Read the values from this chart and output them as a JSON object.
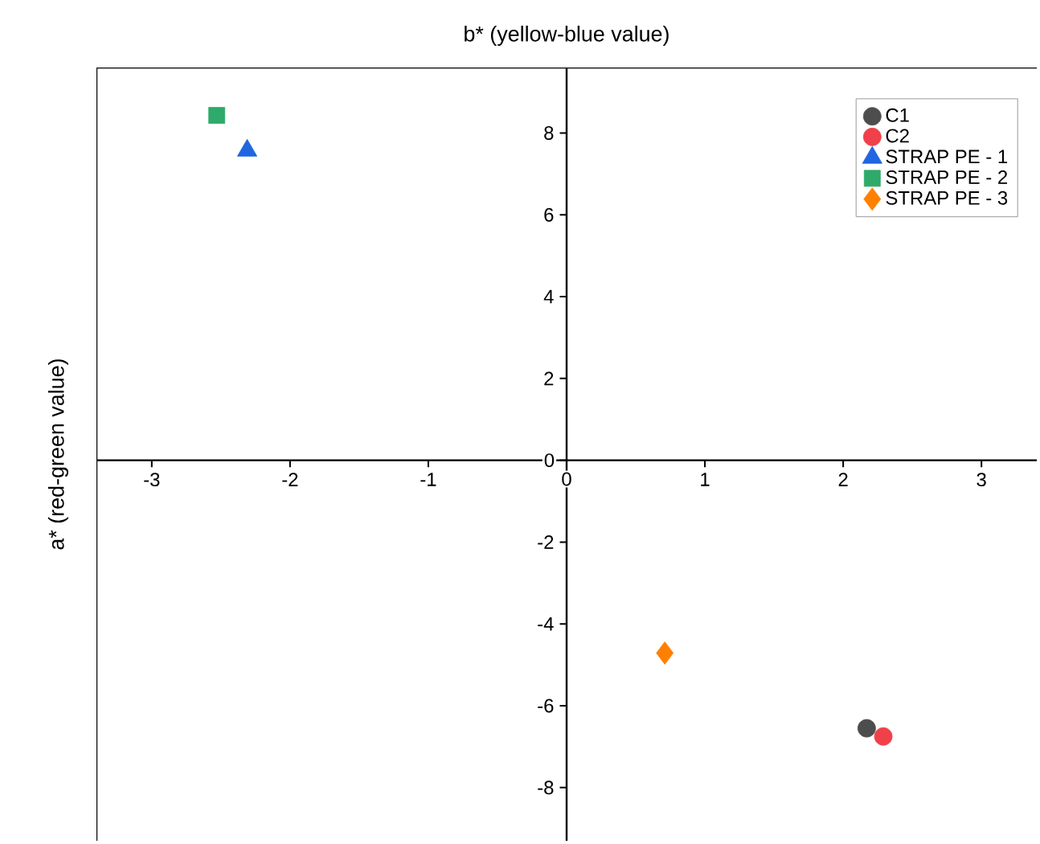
{
  "chart_data": {
    "type": "scatter",
    "title": "b* (yellow-blue value)",
    "ylabel": "a* (red-green value)",
    "xlim": [
      -3.4,
      3.4
    ],
    "ylim": [
      -9.3,
      9.6
    ],
    "xticks": [
      -3,
      -2,
      -1,
      0,
      1,
      2,
      3
    ],
    "yticks": [
      -8,
      -6,
      -4,
      -2,
      0,
      2,
      4,
      6,
      8
    ],
    "legend": "top right",
    "grid": false,
    "series": [
      {
        "name": "C1",
        "color": "#4d4d4d",
        "marker": "circle",
        "x": [
          2.17
        ],
        "values": [
          -6.55
        ]
      },
      {
        "name": "C2",
        "color": "#f0404a",
        "marker": "circle",
        "x": [
          2.29
        ],
        "values": [
          -6.75
        ]
      },
      {
        "name": "STRAP PE - 1",
        "color": "#1f66e0",
        "marker": "triangle",
        "x": [
          -2.31
        ],
        "values": [
          7.57
        ]
      },
      {
        "name": "STRAP PE - 2",
        "color": "#2eaa6a",
        "marker": "square",
        "x": [
          -2.53
        ],
        "values": [
          8.43
        ]
      },
      {
        "name": "STRAP PE - 3",
        "color": "#ff8000",
        "marker": "diamond",
        "x": [
          0.71
        ],
        "values": [
          -4.71
        ]
      }
    ]
  }
}
